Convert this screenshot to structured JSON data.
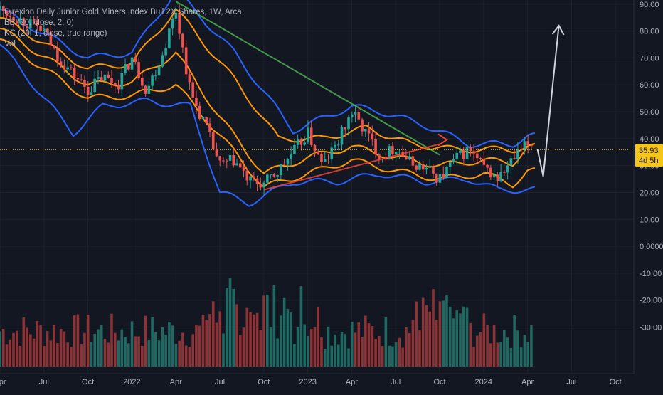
{
  "legend": {
    "title": "Direxion Daily Junior Gold Miners Index Bull 2X Shares, 1W, Arca",
    "bb": "BB (20, close, 2, 0)",
    "kc": "KC (20, 1, close, true range)",
    "vol": "Vol"
  },
  "price_tag": {
    "value": "35.93",
    "countdown": "4d 5h"
  },
  "colors": {
    "background": "#131722",
    "grid": "#1e222d",
    "up": "#26a69a",
    "down": "#ef5350",
    "bb": "#2962ff",
    "kc": "#ff9800",
    "trend_down": "#4caf50",
    "trend_up": "#f44336",
    "arrow": "#d1d4dc",
    "price_line": "#f5c518",
    "vol_up": "#22786f",
    "vol_down": "#a3383a"
  },
  "chart_data": {
    "type": "candlestick",
    "title": "Direxion Daily Junior Gold Miners Index Bull 2X Shares, 1W, Arca",
    "interval": "1W",
    "y_ticks": [
      "90.00",
      "80.00",
      "70.00",
      "60.00",
      "50.00",
      "40.00",
      "30.00",
      "20.00",
      "10.00",
      "0.0000",
      "-10.00",
      "-20.00",
      "-30.00"
    ],
    "price_range": [
      -37,
      91
    ],
    "x_ticks": [
      "Apr",
      "Jul",
      "Oct",
      "2022",
      "Apr",
      "Jul",
      "Oct",
      "2023",
      "Apr",
      "Jul",
      "Oct",
      "2024",
      "Apr",
      "Jul",
      "Oct"
    ],
    "last_price": 35.93,
    "price_anchors": [
      [
        "2021-04",
        88
      ],
      [
        "2021-07",
        80
      ],
      [
        "2021-08",
        70
      ],
      [
        "2021-10",
        58
      ],
      [
        "2021-11",
        63
      ],
      [
        "2021-12",
        60
      ],
      [
        "2022-01",
        70
      ],
      [
        "2022-02",
        58
      ],
      [
        "2022-03",
        70
      ],
      [
        "2022-04",
        88
      ],
      [
        "2022-05",
        57
      ],
      [
        "2022-06",
        45
      ],
      [
        "2022-07",
        30
      ],
      [
        "2022-08",
        32
      ],
      [
        "2022-09",
        24
      ],
      [
        "2022-10",
        23
      ],
      [
        "2022-11",
        28
      ],
      [
        "2022-12",
        35
      ],
      [
        "2023-01",
        42
      ],
      [
        "2023-02",
        30
      ],
      [
        "2023-03",
        38
      ],
      [
        "2023-04",
        50
      ],
      [
        "2023-05",
        42
      ],
      [
        "2023-06",
        33
      ],
      [
        "2023-07",
        37
      ],
      [
        "2023-08",
        31
      ],
      [
        "2023-09",
        29
      ],
      [
        "2023-10",
        25
      ],
      [
        "2023-11",
        32
      ],
      [
        "2023-12",
        36
      ],
      [
        "2024-01",
        29
      ],
      [
        "2024-02",
        25
      ],
      [
        "2024-03",
        32
      ],
      [
        "2024-04",
        38
      ]
    ],
    "bollinger": {
      "upper": [
        [
          "2021-04",
          88
        ],
        [
          "2021-10",
          70
        ],
        [
          "2022-01",
          72
        ],
        [
          "2022-04",
          95
        ],
        [
          "2022-08",
          72
        ],
        [
          "2022-12",
          43
        ],
        [
          "2023-04",
          52
        ],
        [
          "2023-06",
          50
        ],
        [
          "2023-09",
          45
        ],
        [
          "2023-12",
          38
        ],
        [
          "2024-03",
          38
        ],
        [
          "2024-04",
          41
        ]
      ],
      "lower": [
        [
          "2021-04",
          75
        ],
        [
          "2021-09",
          42
        ],
        [
          "2021-11",
          52
        ],
        [
          "2022-02",
          54
        ],
        [
          "2022-05",
          52
        ],
        [
          "2022-07",
          20
        ],
        [
          "2022-09",
          16
        ],
        [
          "2022-12",
          24
        ],
        [
          "2023-03",
          24
        ],
        [
          "2023-06",
          27
        ],
        [
          "2023-09",
          24
        ],
        [
          "2023-12",
          25
        ],
        [
          "2024-02",
          21
        ],
        [
          "2024-04",
          21
        ]
      ]
    },
    "keltner": {
      "upper": [
        [
          "2021-04",
          85
        ],
        [
          "2021-10",
          66
        ],
        [
          "2022-01",
          68
        ],
        [
          "2022-04",
          88
        ],
        [
          "2022-08",
          62
        ],
        [
          "2022-11",
          40
        ],
        [
          "2023-02",
          40
        ],
        [
          "2023-05",
          44
        ],
        [
          "2023-08",
          38
        ],
        [
          "2023-11",
          36
        ],
        [
          "2024-03",
          36
        ],
        [
          "2024-04",
          37
        ]
      ],
      "middle": [
        [
          "2021-04",
          81
        ],
        [
          "2021-10",
          60
        ],
        [
          "2022-01",
          61
        ],
        [
          "2022-04",
          72
        ],
        [
          "2022-07",
          48
        ],
        [
          "2022-10",
          27
        ],
        [
          "2023-01",
          33
        ],
        [
          "2023-04",
          37
        ],
        [
          "2023-07",
          33
        ],
        [
          "2023-10",
          30
        ],
        [
          "2024-01",
          32
        ],
        [
          "2024-03",
          31
        ],
        [
          "2024-04",
          37
        ]
      ],
      "lower": [
        [
          "2021-04",
          77
        ],
        [
          "2021-10",
          55
        ],
        [
          "2022-01",
          56
        ],
        [
          "2022-04",
          60
        ],
        [
          "2022-08",
          35
        ],
        [
          "2022-10",
          22
        ],
        [
          "2023-01",
          27
        ],
        [
          "2023-04",
          32
        ],
        [
          "2023-07",
          28
        ],
        [
          "2023-10",
          25
        ],
        [
          "2024-01",
          27
        ],
        [
          "2024-03",
          23
        ],
        [
          "2024-04",
          28
        ]
      ]
    },
    "trend_lines": [
      {
        "name": "down",
        "from": [
          "2022-04",
          91
        ],
        "to": [
          "2023-10",
          34
        ]
      },
      {
        "name": "up",
        "from": [
          "2022-10",
          21
        ],
        "to": [
          "2023-10",
          38
        ]
      }
    ],
    "projection": [
      [
        "2024-04",
        36
      ],
      [
        "2024-04",
        26
      ],
      [
        "2024-05",
        82
      ]
    ],
    "volume_note": "weekly volume bars on bottom pane, height relative"
  }
}
